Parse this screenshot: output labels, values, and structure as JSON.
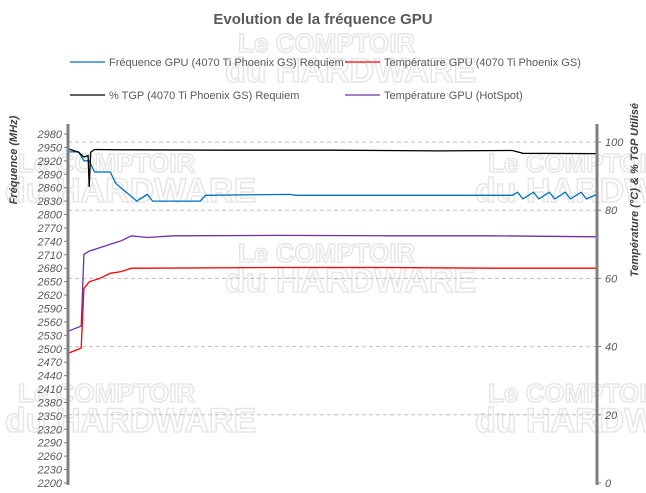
{
  "watermark": {
    "line1": "Le COMPTOIR",
    "line2": "du HARDWARE"
  },
  "chart_data": {
    "type": "line",
    "title": "Evolution de la fréquence GPU",
    "ylabel": "Fréquence (MHz)",
    "y2label": "Température (°C) & % TGP Utilisé",
    "xlabel": "",
    "ylim": [
      2200,
      2980
    ],
    "y_ticks": [
      2200,
      2230,
      2260,
      2290,
      2320,
      2350,
      2380,
      2410,
      2440,
      2470,
      2500,
      2530,
      2560,
      2590,
      2620,
      2650,
      2680,
      2710,
      2740,
      2770,
      2800,
      2830,
      2860,
      2890,
      2920,
      2950,
      2980
    ],
    "y2lim": [
      0,
      100
    ],
    "y2_ticks": [
      0,
      20,
      40,
      60,
      80,
      100
    ],
    "grid": "dashed horizontal at right-axis ticks",
    "legend_placement": "top",
    "series": [
      {
        "name": "Fréquence GPU (4070 Ti Phoenix GS) Requiem",
        "axis": "left",
        "color": "#0070c0",
        "points": [
          [
            0,
            2940
          ],
          [
            2,
            2940
          ],
          [
            3,
            2920
          ],
          [
            4,
            2920
          ],
          [
            5,
            2895
          ],
          [
            8,
            2895
          ],
          [
            9,
            2870
          ],
          [
            10,
            2860
          ],
          [
            11,
            2850
          ],
          [
            12,
            2840
          ],
          [
            13,
            2830
          ],
          [
            15,
            2845
          ],
          [
            16,
            2830
          ],
          [
            25,
            2830
          ],
          [
            26,
            2843
          ],
          [
            42,
            2845
          ],
          [
            43,
            2843
          ],
          [
            84,
            2843
          ],
          [
            85,
            2850
          ],
          [
            86,
            2835
          ],
          [
            88,
            2850
          ],
          [
            89,
            2835
          ],
          [
            91,
            2850
          ],
          [
            92,
            2835
          ],
          [
            94,
            2850
          ],
          [
            95,
            2835
          ],
          [
            97,
            2850
          ],
          [
            98,
            2835
          ],
          [
            100,
            2845
          ]
        ]
      },
      {
        "name": "Température GPU (4070 Ti Phoenix GS)",
        "axis": "right",
        "color": "#ff0000",
        "points": [
          [
            0,
            38
          ],
          [
            2.5,
            39.6
          ],
          [
            3,
            57
          ],
          [
            4,
            59
          ],
          [
            6,
            60
          ],
          [
            8,
            61.5
          ],
          [
            10,
            62
          ],
          [
            12,
            63
          ],
          [
            15,
            63
          ],
          [
            40,
            63.2
          ],
          [
            60,
            63.2
          ],
          [
            80,
            63
          ],
          [
            100,
            63
          ]
        ]
      },
      {
        "name": "% TGP (4070 Ti Phoenix GS) Requiem",
        "axis": "right",
        "color": "#000000",
        "points": [
          [
            0,
            98
          ],
          [
            2,
            97
          ],
          [
            3,
            95.6
          ],
          [
            3.8,
            96
          ],
          [
            4,
            86.8
          ],
          [
            4.3,
            97
          ],
          [
            5,
            97.8
          ],
          [
            10,
            97.7
          ],
          [
            30,
            97.6
          ],
          [
            50,
            97.6
          ],
          [
            70,
            97.4
          ],
          [
            84,
            97.5
          ],
          [
            86,
            96.7
          ],
          [
            100,
            96.6
          ]
        ]
      },
      {
        "name": "Température GPU (HotSpot)",
        "axis": "right",
        "color": "#7030a0",
        "points": [
          [
            0,
            44.5
          ],
          [
            2.5,
            46
          ],
          [
            3,
            67
          ],
          [
            4,
            68
          ],
          [
            6,
            69
          ],
          [
            8,
            70
          ],
          [
            10,
            71
          ],
          [
            12,
            72.5
          ],
          [
            15,
            72
          ],
          [
            20,
            72.5
          ],
          [
            40,
            72.6
          ],
          [
            60,
            72.5
          ],
          [
            80,
            72.5
          ],
          [
            100,
            72.2
          ]
        ]
      }
    ]
  }
}
